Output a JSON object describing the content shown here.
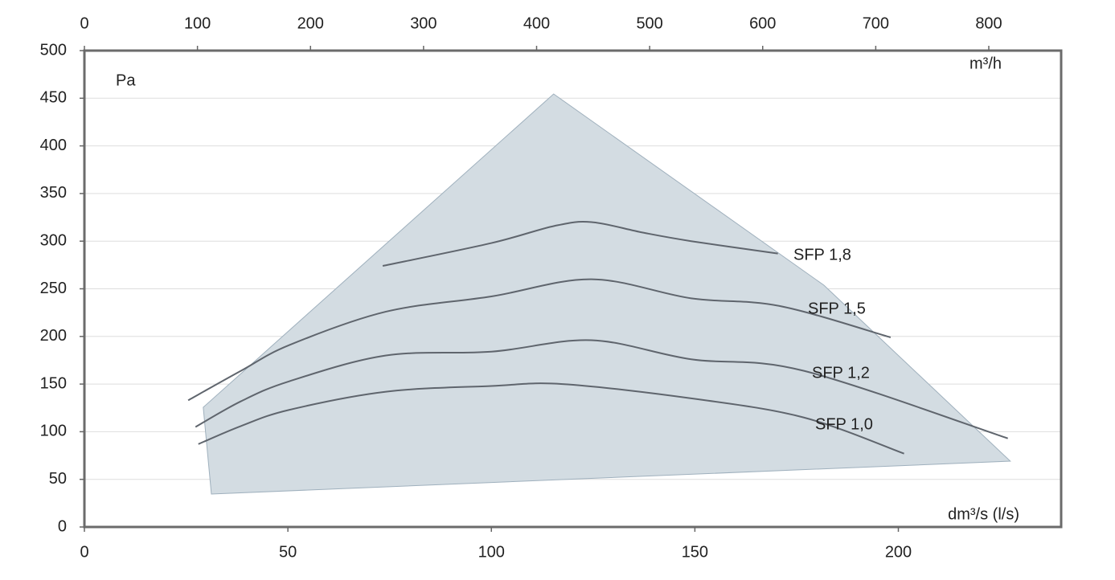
{
  "chart_data": {
    "type": "line",
    "y_label": "Pa",
    "x_label": "dm³/s (l/s)",
    "x2_label": "m³/h",
    "xlim": [
      0,
      240
    ],
    "xticks": [
      0,
      50,
      100,
      150,
      200
    ],
    "x2lim": [
      0,
      864
    ],
    "x2ticks": [
      0,
      100,
      200,
      300,
      400,
      500,
      600,
      700,
      800
    ],
    "ylim": [
      0,
      500
    ],
    "yticks": [
      0,
      50,
      100,
      150,
      200,
      250,
      300,
      350,
      400,
      450,
      500
    ],
    "grid": true,
    "operating_range": {
      "color": "#d3dce2",
      "x": [
        29.2,
        31.2,
        227.5,
        181.7,
        115.3
      ],
      "y": [
        125.6,
        34.6,
        69.1,
        253.8,
        454.5
      ]
    },
    "series": [
      {
        "name": "SFP 1,8",
        "color": "#5f656d",
        "x": [
          73.3,
          100,
          115.5,
          124.6,
          137.2,
          149.1,
          170.4
        ],
        "values": [
          274,
          298,
          316,
          320,
          309,
          300,
          287
        ]
      },
      {
        "name": "SFP 1,5",
        "color": "#5f656d",
        "x": [
          25.5,
          38.5,
          50.4,
          74.1,
          100,
          124.6,
          149.1,
          170.8,
          198.1
        ],
        "values": [
          133,
          164,
          191,
          226,
          242,
          260,
          240,
          232,
          199
        ]
      },
      {
        "name": "SFP 1,2",
        "color": "#5f656d",
        "x": [
          27.3,
          38.5,
          50.4,
          74.1,
          100,
          124.6,
          149.1,
          176.7,
          226.9
        ],
        "values": [
          105,
          132,
          153,
          180,
          184,
          196,
          176,
          164,
          93
        ]
      },
      {
        "name": "SFP 1,0",
        "color": "#5f656d",
        "x": [
          28,
          38.5,
          50.4,
          74.1,
          100,
          117.5,
          149.1,
          176.7,
          201.4
        ],
        "values": [
          87,
          106,
          123,
          142,
          148,
          150,
          135,
          115,
          77
        ]
      }
    ]
  }
}
